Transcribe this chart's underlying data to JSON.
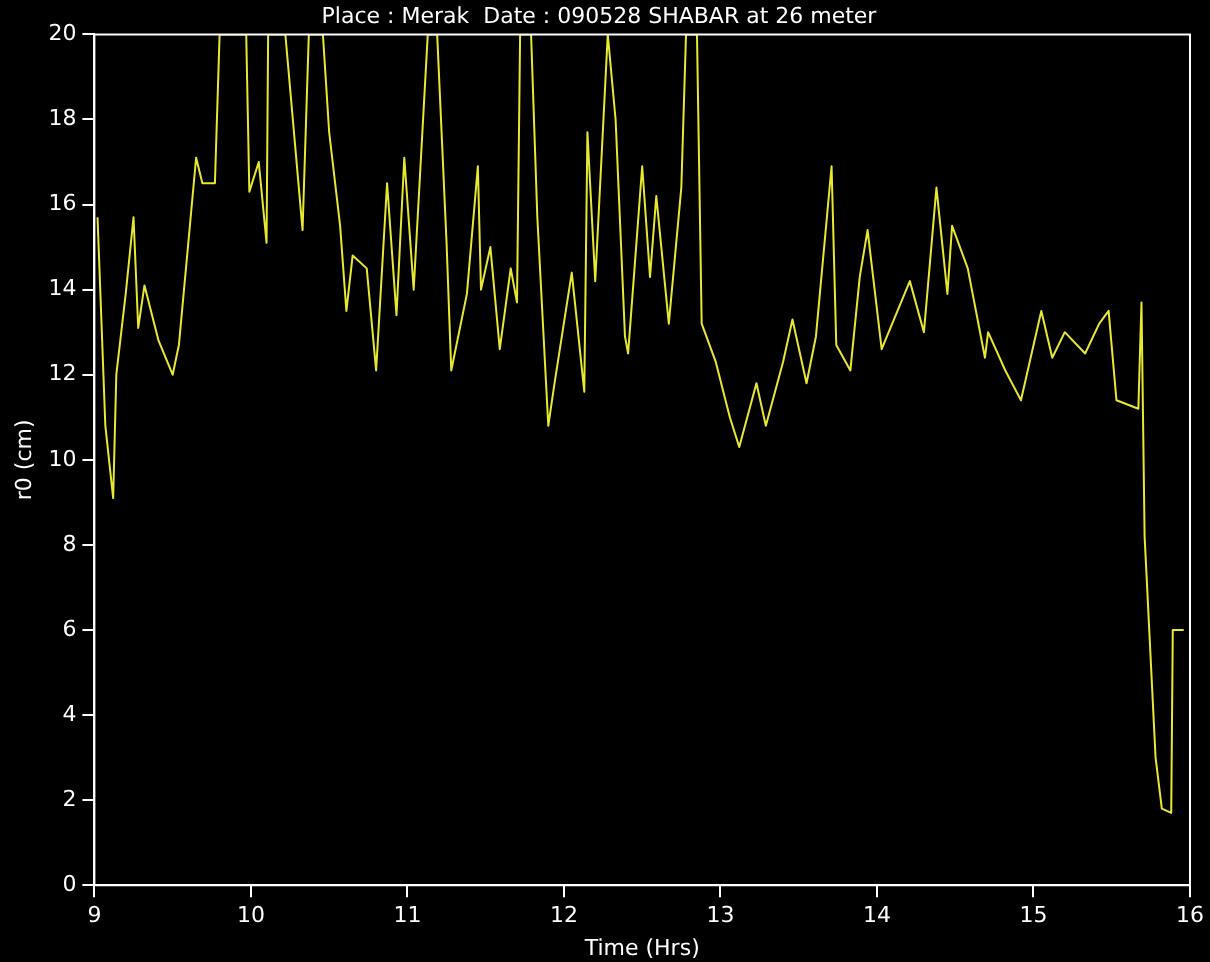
{
  "chart_data": {
    "type": "line",
    "title": "Place : Merak  Date : 090528 SHABAR at 26 meter",
    "xlabel": "Time (Hrs)",
    "ylabel": "r0 (cm)",
    "xlim": [
      9,
      16
    ],
    "xticks": [
      9,
      10,
      11,
      12,
      13,
      14,
      15,
      16
    ],
    "ylim": [
      0,
      20
    ],
    "yticks": [
      0,
      2,
      4,
      6,
      8,
      10,
      12,
      14,
      16,
      18,
      20
    ],
    "grid": false,
    "legend": false,
    "marker": "none",
    "line_style": "solid",
    "series": [
      {
        "color": "#e8e830",
        "x": [
          9.02,
          9.07,
          9.12,
          9.14,
          9.2,
          9.25,
          9.28,
          9.32,
          9.41,
          9.5,
          9.54,
          9.65,
          9.69,
          9.77,
          9.8,
          9.97,
          9.99,
          10.05,
          10.1,
          10.11,
          10.22,
          10.33,
          10.37,
          10.46,
          10.5,
          10.57,
          10.61,
          10.65,
          10.74,
          10.8,
          10.87,
          10.93,
          10.98,
          11.04,
          11.13,
          11.19,
          11.25,
          11.28,
          11.38,
          11.45,
          11.47,
          11.53,
          11.59,
          11.66,
          11.7,
          11.72,
          11.79,
          11.83,
          11.9,
          11.94,
          12.05,
          12.13,
          12.15,
          12.2,
          12.28,
          12.33,
          12.39,
          12.41,
          12.5,
          12.55,
          12.59,
          12.67,
          12.75,
          12.78,
          12.85,
          12.88,
          12.97,
          13.06,
          13.12,
          13.23,
          13.29,
          13.4,
          13.46,
          13.55,
          13.61,
          13.71,
          13.74,
          13.83,
          13.89,
          13.94,
          14.03,
          14.21,
          14.3,
          14.38,
          14.45,
          14.48,
          14.58,
          14.69,
          14.71,
          14.82,
          14.92,
          15.05,
          15.12,
          15.2,
          15.33,
          15.42,
          15.48,
          15.53,
          15.67,
          15.69,
          15.71,
          15.78,
          15.82,
          15.88,
          15.89,
          15.96
        ],
        "values": [
          15.7,
          10.8,
          9.1,
          12.0,
          13.9,
          15.7,
          13.1,
          14.1,
          12.8,
          12.0,
          12.7,
          17.1,
          16.5,
          16.5,
          20,
          20,
          16.3,
          17.0,
          15.1,
          20,
          20,
          15.4,
          20,
          20,
          17.7,
          15.5,
          13.5,
          14.8,
          14.5,
          12.1,
          16.5,
          13.4,
          17.1,
          14.0,
          20,
          20,
          15.1,
          12.1,
          13.9,
          16.9,
          14.0,
          15.0,
          12.6,
          14.5,
          13.7,
          20,
          20,
          15.7,
          10.8,
          11.8,
          14.4,
          11.6,
          17.7,
          14.2,
          20,
          18.0,
          12.9,
          12.5,
          16.9,
          14.3,
          16.2,
          13.2,
          16.4,
          20,
          20,
          13.2,
          12.3,
          11.0,
          10.3,
          11.8,
          10.8,
          12.3,
          13.3,
          11.8,
          12.9,
          16.9,
          12.7,
          12.1,
          14.3,
          15.4,
          12.6,
          14.2,
          13.0,
          16.4,
          13.9,
          15.5,
          14.5,
          12.4,
          13.0,
          12.1,
          11.4,
          13.5,
          12.4,
          13.0,
          12.5,
          13.2,
          13.5,
          11.4,
          11.2,
          13.7,
          8.2,
          3.0,
          1.8,
          1.7,
          6.0,
          6.0
        ]
      }
    ]
  }
}
